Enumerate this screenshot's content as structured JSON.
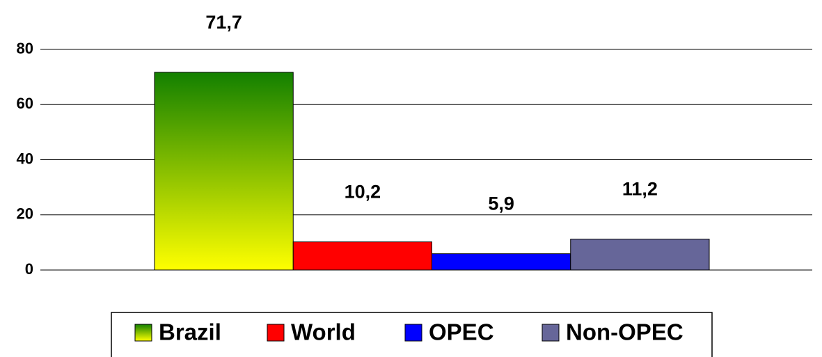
{
  "chart_data": {
    "type": "bar",
    "categories": [
      null
    ],
    "series": [
      {
        "name": "Brazil",
        "color": "#138000",
        "gradient": "#ffff00",
        "values": [
          71.7
        ],
        "value_labels": [
          "71,7"
        ]
      },
      {
        "name": "World",
        "color": "#ff0000",
        "values": [
          10.2
        ],
        "value_labels": [
          "10,2"
        ]
      },
      {
        "name": "OPEC",
        "color": "#0000ff",
        "values": [
          5.9
        ],
        "value_labels": [
          "5,9"
        ]
      },
      {
        "name": "Non-OPEC",
        "color": "#666699",
        "values": [
          11.2
        ],
        "value_labels": [
          "11,2"
        ]
      }
    ],
    "ylim": [
      0,
      80
    ],
    "yticks": [
      0,
      20,
      40,
      60,
      80
    ],
    "grid": true,
    "legend": "bottom"
  }
}
